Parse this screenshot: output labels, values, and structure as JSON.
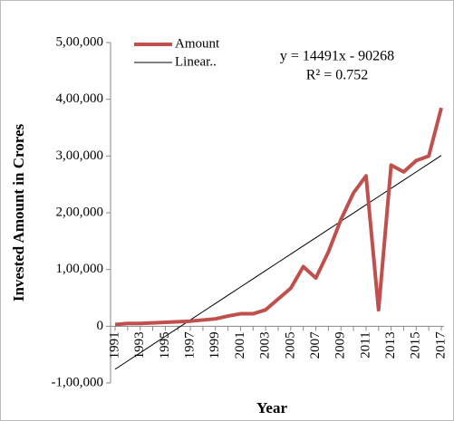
{
  "chart_data": {
    "type": "line",
    "x_label": "Year",
    "y_label": "Invested Amount in Crores",
    "annotations": [
      "y = 14491x - 90268",
      "R² = 0.752"
    ],
    "categories": [
      "1991",
      null,
      "1993",
      null,
      "1995",
      null,
      "1997",
      null,
      "1999",
      null,
      "2001",
      null,
      "2003",
      null,
      "2005",
      null,
      "2007",
      null,
      "2009",
      null,
      "2011",
      null,
      "2013",
      null,
      "2015",
      null,
      "2017"
    ],
    "series": [
      {
        "name": "Amount",
        "color": "#c0504d",
        "width": 4,
        "values": [
          3000,
          5000,
          5000,
          6000,
          7000,
          8000,
          9000,
          11000,
          13000,
          18000,
          22000,
          22000,
          29000,
          48000,
          67000,
          105000,
          85000,
          131000,
          188000,
          235000,
          265000,
          29000,
          284000,
          272000,
          292000,
          300000,
          385000
        ]
      },
      {
        "name": "Linear..",
        "color": "#000000",
        "width": 1,
        "values": [
          -75777,
          -61286,
          -46795,
          -32304,
          -17813,
          -3322,
          11169,
          25660,
          40151,
          54642,
          69133,
          83624,
          98115,
          112606,
          127097,
          141588,
          156079,
          170570,
          185061,
          199552,
          214043,
          228534,
          243025,
          257516,
          272007,
          286498,
          300989
        ]
      }
    ],
    "ylim": [
      -100000,
      500000
    ],
    "yticks": [
      {
        "value": -100000,
        "label": "-1,00,000"
      },
      0,
      {
        "value": 100000,
        "label": "1,00,000"
      },
      {
        "value": 200000,
        "label": "2,00,000"
      },
      {
        "value": 300000,
        "label": "3,00,000"
      },
      {
        "value": 400000,
        "label": "4,00,000"
      },
      {
        "value": 500000,
        "label": "5,00,000"
      }
    ],
    "legend": "top-left"
  }
}
